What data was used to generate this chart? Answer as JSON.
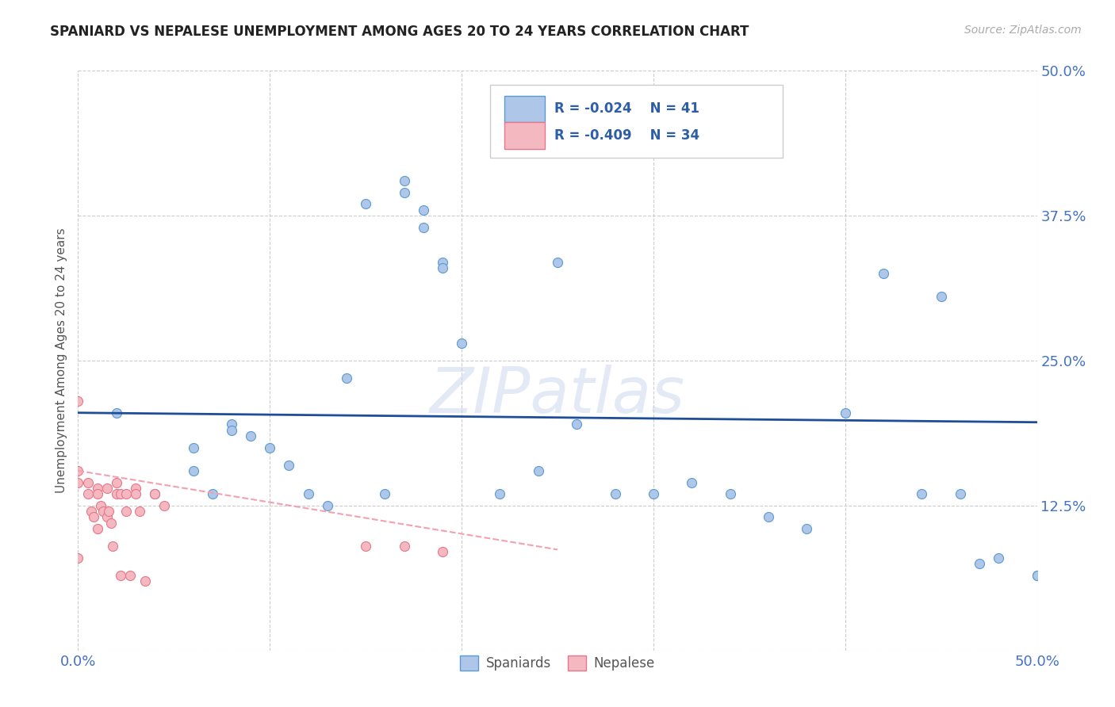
{
  "title": "SPANIARD VS NEPALESE UNEMPLOYMENT AMONG AGES 20 TO 24 YEARS CORRELATION CHART",
  "source": "Source: ZipAtlas.com",
  "ylabel": "Unemployment Among Ages 20 to 24 years",
  "xlim": [
    0.0,
    0.5
  ],
  "ylim": [
    0.0,
    0.5
  ],
  "xticks": [
    0.0,
    0.1,
    0.2,
    0.3,
    0.4,
    0.5
  ],
  "yticks": [
    0.0,
    0.125,
    0.25,
    0.375,
    0.5
  ],
  "xticklabels": [
    "0.0%",
    "",
    "",
    "",
    "",
    "50.0%"
  ],
  "yticklabels": [
    "",
    "12.5%",
    "25.0%",
    "37.5%",
    "50.0%"
  ],
  "grid_color": "#cccccc",
  "background_color": "#ffffff",
  "spaniards_color": "#aec6e8",
  "spaniards_edge": "#5b9bd5",
  "nepalese_color": "#f4b8c1",
  "nepalese_edge": "#e8768a",
  "trendline_spaniards": "#1f4e99",
  "trendline_nepalese": "#f4a0b0",
  "R1": -0.024,
  "N1": 41,
  "R2": -0.409,
  "N2": 34,
  "spaniards_x": [
    0.02,
    0.04,
    0.06,
    0.07,
    0.08,
    0.09,
    0.1,
    0.11,
    0.12,
    0.13,
    0.14,
    0.15,
    0.16,
    0.17,
    0.18,
    0.19,
    0.2,
    0.22,
    0.24,
    0.26,
    0.28,
    0.3,
    0.32,
    0.34,
    0.36,
    0.38,
    0.4,
    0.42,
    0.44,
    0.46,
    0.47,
    0.48,
    0.5,
    0.5,
    0.17,
    0.18,
    0.19,
    0.06,
    0.08,
    0.25,
    0.45
  ],
  "spaniards_y": [
    0.205,
    0.135,
    0.155,
    0.135,
    0.195,
    0.185,
    0.175,
    0.16,
    0.135,
    0.125,
    0.235,
    0.385,
    0.135,
    0.405,
    0.365,
    0.335,
    0.265,
    0.135,
    0.155,
    0.195,
    0.135,
    0.135,
    0.145,
    0.135,
    0.115,
    0.105,
    0.205,
    0.325,
    0.135,
    0.135,
    0.075,
    0.08,
    0.065,
    0.065,
    0.395,
    0.38,
    0.33,
    0.175,
    0.19,
    0.335,
    0.305
  ],
  "nepalese_x": [
    0.0,
    0.0,
    0.0,
    0.0,
    0.005,
    0.005,
    0.007,
    0.008,
    0.01,
    0.01,
    0.01,
    0.012,
    0.013,
    0.015,
    0.015,
    0.016,
    0.017,
    0.018,
    0.02,
    0.02,
    0.022,
    0.022,
    0.025,
    0.025,
    0.027,
    0.03,
    0.03,
    0.032,
    0.035,
    0.04,
    0.045,
    0.15,
    0.17,
    0.19
  ],
  "nepalese_y": [
    0.215,
    0.155,
    0.145,
    0.08,
    0.145,
    0.135,
    0.12,
    0.115,
    0.14,
    0.135,
    0.105,
    0.125,
    0.12,
    0.14,
    0.115,
    0.12,
    0.11,
    0.09,
    0.145,
    0.135,
    0.135,
    0.065,
    0.135,
    0.12,
    0.065,
    0.14,
    0.135,
    0.12,
    0.06,
    0.135,
    0.125,
    0.09,
    0.09,
    0.085
  ],
  "watermark_text": "ZIPatlas",
  "marker_size": 75
}
